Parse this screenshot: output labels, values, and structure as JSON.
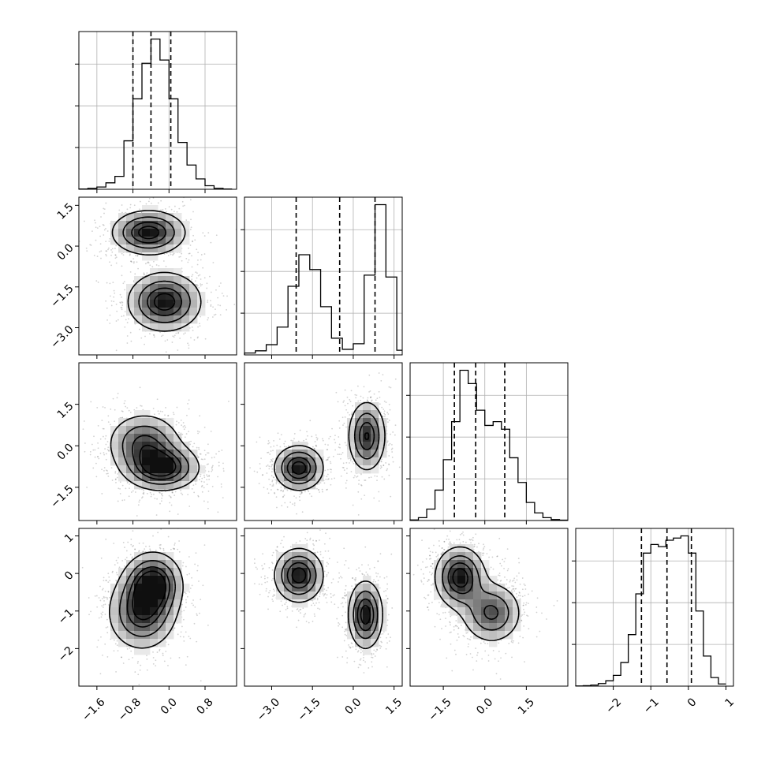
{
  "chart_data": {
    "type": "corner",
    "title": "",
    "parameters": [
      {
        "index": 0,
        "range": [
          -2.0,
          1.5
        ],
        "ticks": [
          -1.6,
          -0.8,
          0.0,
          0.8
        ],
        "tick_labels": [
          "−1.6",
          "−0.8",
          "0.0",
          "0.8"
        ],
        "quantiles": [
          -0.8,
          -0.4,
          0.04
        ]
      },
      {
        "index": 1,
        "range": [
          -4.0,
          1.8
        ],
        "ticks": [
          -3.0,
          -1.5,
          0.0,
          1.5
        ],
        "tick_labels": [
          "−3.0",
          "−1.5",
          "0.0",
          "1.5"
        ],
        "quantiles": [
          -2.1,
          -0.5,
          0.8
        ]
      },
      {
        "index": 2,
        "range": [
          -2.7,
          3.0
        ],
        "ticks": [
          -1.5,
          0.0,
          1.5
        ],
        "tick_labels": [
          "−1.5",
          "0.0",
          "1.5"
        ],
        "quantiles": [
          -1.1,
          -0.33,
          0.72
        ]
      },
      {
        "index": 3,
        "range": [
          -3.0,
          1.2
        ],
        "ticks": [
          -2,
          -1,
          0,
          1
        ],
        "tick_labels": [
          "−2",
          "−1",
          "0",
          "1"
        ],
        "quantiles": [
          -1.25,
          -0.57,
          0.08
        ]
      }
    ],
    "histograms": [
      {
        "param": 0,
        "bin_edges": [
          -2.0,
          -1.8,
          -1.6,
          -1.4,
          -1.2,
          -1.0,
          -0.8,
          -0.6,
          -0.4,
          -0.2,
          0.0,
          0.2,
          0.4,
          0.6,
          0.8,
          1.0,
          1.2,
          1.4
        ],
        "counts": [
          1,
          3,
          7,
          20,
          40,
          150,
          280,
          390,
          465,
          400,
          280,
          145,
          75,
          32,
          11,
          3,
          1
        ]
      },
      {
        "param": 1,
        "bin_edges": [
          -4.0,
          -3.6,
          -3.2,
          -2.8,
          -2.4,
          -2.0,
          -1.6,
          -1.2,
          -0.8,
          -0.4,
          0.0,
          0.4,
          0.8,
          1.2,
          1.6,
          1.8
        ],
        "counts": [
          10,
          22,
          55,
          150,
          370,
          540,
          460,
          260,
          90,
          30,
          60,
          430,
          810,
          420,
          25
        ]
      },
      {
        "param": 2,
        "bin_edges": [
          -2.7,
          -2.4,
          -2.1,
          -1.8,
          -1.5,
          -1.2,
          -0.9,
          -0.6,
          -0.3,
          0.0,
          0.3,
          0.6,
          0.9,
          1.2,
          1.5,
          1.8,
          2.1,
          2.4,
          2.7,
          3.0
        ],
        "counts": [
          3,
          15,
          60,
          160,
          320,
          520,
          790,
          720,
          580,
          500,
          520,
          480,
          330,
          200,
          95,
          40,
          15,
          5,
          2
        ]
      },
      {
        "param": 3,
        "bin_edges": [
          -3.0,
          -2.8,
          -2.6,
          -2.4,
          -2.2,
          -2.0,
          -1.8,
          -1.6,
          -1.4,
          -1.2,
          -1.0,
          -0.8,
          -0.6,
          -0.4,
          -0.2,
          0.0,
          0.2,
          0.4,
          0.6,
          0.8,
          1.0
        ],
        "counts": [
          1,
          2,
          5,
          12,
          25,
          50,
          110,
          240,
          430,
          620,
          660,
          650,
          680,
          690,
          700,
          620,
          350,
          140,
          40,
          10
        ]
      }
    ],
    "density_components": [
      {
        "row": 1,
        "col": 0,
        "blobs": [
          {
            "cx": -0.45,
            "cy": 0.5,
            "sx": 0.45,
            "sy": 0.45,
            "w": 1.0
          },
          {
            "cx": -0.1,
            "cy": -2.05,
            "sx": 0.45,
            "sy": 0.6,
            "w": 1.0
          }
        ]
      },
      {
        "row": 2,
        "col": 0,
        "blobs": [
          {
            "cx": -0.15,
            "cy": -0.8,
            "sx": 0.45,
            "sy": 0.45,
            "w": 1.0
          },
          {
            "cx": -0.55,
            "cy": 0.1,
            "sx": 0.45,
            "sy": 0.6,
            "w": 0.75
          }
        ]
      },
      {
        "row": 2,
        "col": 1,
        "blobs": [
          {
            "cx": -2.0,
            "cy": -0.8,
            "sx": 0.5,
            "sy": 0.45,
            "w": 1.0
          },
          {
            "cx": 0.5,
            "cy": 0.35,
            "sx": 0.38,
            "sy": 0.7,
            "w": 0.9
          }
        ]
      },
      {
        "row": 3,
        "col": 0,
        "blobs": [
          {
            "cx": -0.35,
            "cy": -0.25,
            "sx": 0.35,
            "sy": 0.45,
            "w": 1.0
          },
          {
            "cx": -0.6,
            "cy": -1.05,
            "sx": 0.42,
            "sy": 0.55,
            "w": 0.85
          }
        ]
      },
      {
        "row": 3,
        "col": 1,
        "blobs": [
          {
            "cx": -2.0,
            "cy": -0.05,
            "sx": 0.5,
            "sy": 0.4,
            "w": 1.0
          },
          {
            "cx": 0.45,
            "cy": -1.1,
            "sx": 0.35,
            "sy": 0.5,
            "w": 1.0
          }
        ]
      },
      {
        "row": 3,
        "col": 2,
        "blobs": [
          {
            "cx": -0.9,
            "cy": -0.1,
            "sx": 0.5,
            "sy": 0.45,
            "w": 1.0
          },
          {
            "cx": 0.25,
            "cy": -1.05,
            "sx": 0.6,
            "sy": 0.45,
            "w": 0.75
          }
        ]
      }
    ],
    "contour_levels": [
      0.2,
      0.45,
      0.7,
      0.88
    ],
    "grid": true,
    "legend": "none"
  }
}
